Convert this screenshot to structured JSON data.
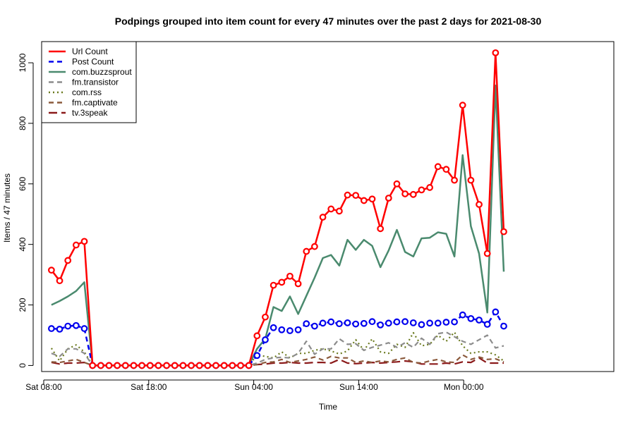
{
  "chart_data": {
    "type": "line",
    "title": "Podpings grouped into item count for every 47 minutes  over the past 2 days for 2021-08-30",
    "xlabel": "Time",
    "ylabel": "Items / 47 minutes",
    "x_tick_labels": [
      "Sat 08:00",
      "Sat 18:00",
      "Sun 04:00",
      "Sun 14:00",
      "Mon 00:00"
    ],
    "x_tick_times": [
      "2021-08-28 08:00",
      "2021-08-28 18:00",
      "2021-08-29 04:00",
      "2021-08-29 14:00",
      "2021-08-30 00:00"
    ],
    "y_ticks": [
      0,
      200,
      400,
      600,
      800,
      1000
    ],
    "ylim": [
      -20,
      1070
    ],
    "xlim": [
      "2021-08-28 07:48",
      "2021-08-30 14:18"
    ],
    "x_start": "2021-08-28 08:44",
    "x_step_minutes": 47,
    "legend_position": "top-left",
    "grid": false,
    "series": [
      {
        "name": "Url Count",
        "color": "#ff0000",
        "style": "solid",
        "markers": true,
        "values": [
          315,
          280,
          347,
          398,
          410,
          0,
          0,
          0,
          0,
          0,
          0,
          0,
          0,
          0,
          0,
          0,
          0,
          0,
          0,
          0,
          0,
          0,
          0,
          0,
          0,
          98,
          160,
          265,
          275,
          295,
          270,
          377,
          393,
          490,
          517,
          510,
          563,
          562,
          545,
          550,
          452,
          553,
          600,
          567,
          565,
          580,
          588,
          657,
          648,
          612,
          860,
          612,
          532,
          370,
          1033,
          442
        ]
      },
      {
        "name": "Post Count",
        "color": "#0000ee",
        "style": "dashed",
        "markers": true,
        "values": [
          122,
          120,
          130,
          132,
          122,
          0,
          0,
          0,
          0,
          0,
          0,
          0,
          0,
          0,
          0,
          0,
          0,
          0,
          0,
          0,
          0,
          0,
          0,
          0,
          0,
          33,
          85,
          125,
          118,
          115,
          118,
          138,
          130,
          140,
          144,
          138,
          141,
          137,
          139,
          145,
          134,
          140,
          144,
          145,
          141,
          135,
          140,
          140,
          143,
          144,
          167,
          155,
          150,
          136,
          177,
          130
        ]
      },
      {
        "name": "com.buzzsprout",
        "color": "#4a8a6e",
        "style": "solid",
        "markers": false,
        "values": [
          200,
          213,
          228,
          246,
          275,
          0,
          0,
          0,
          0,
          0,
          0,
          0,
          0,
          0,
          0,
          0,
          0,
          0,
          0,
          0,
          0,
          0,
          0,
          0,
          0,
          55,
          88,
          193,
          180,
          228,
          170,
          230,
          290,
          355,
          365,
          330,
          415,
          382,
          415,
          395,
          325,
          380,
          448,
          375,
          360,
          420,
          422,
          440,
          435,
          360,
          695,
          460,
          370,
          175,
          925,
          310
        ]
      },
      {
        "name": "fm.transistor",
        "color": "#8c8c8c",
        "style": "dashed",
        "markers": false,
        "values": [
          40,
          30,
          55,
          55,
          40,
          0,
          0,
          0,
          0,
          0,
          0,
          0,
          0,
          0,
          0,
          0,
          0,
          0,
          0,
          0,
          0,
          0,
          0,
          0,
          0,
          8,
          20,
          25,
          27,
          25,
          40,
          80,
          37,
          55,
          55,
          88,
          70,
          72,
          50,
          60,
          67,
          75,
          60,
          75,
          60,
          90,
          70,
          105,
          110,
          95,
          80,
          70,
          85,
          100,
          58,
          65
        ]
      },
      {
        "name": "com.rss",
        "color": "#6b7a1f",
        "style": "dotted",
        "markers": false,
        "values": [
          57,
          15,
          55,
          68,
          45,
          0,
          0,
          0,
          0,
          0,
          0,
          0,
          0,
          0,
          0,
          0,
          0,
          0,
          0,
          0,
          0,
          0,
          0,
          0,
          0,
          35,
          30,
          25,
          45,
          25,
          40,
          40,
          50,
          55,
          48,
          38,
          48,
          85,
          50,
          88,
          45,
          40,
          70,
          60,
          108,
          65,
          70,
          100,
          80,
          110,
          65,
          40,
          45,
          45,
          35,
          15
        ]
      },
      {
        "name": "fm.captivate",
        "color": "#8b5a3c",
        "style": "dashed",
        "markers": false,
        "values": [
          12,
          10,
          15,
          20,
          10,
          0,
          0,
          0,
          0,
          0,
          0,
          0,
          0,
          0,
          0,
          0,
          0,
          0,
          0,
          0,
          0,
          0,
          0,
          0,
          0,
          3,
          10,
          12,
          20,
          10,
          15,
          20,
          28,
          18,
          30,
          25,
          25,
          10,
          15,
          10,
          15,
          12,
          20,
          25,
          10,
          8,
          15,
          20,
          12,
          10,
          35,
          20,
          28,
          20,
          22,
          12
        ]
      },
      {
        "name": "tv.3speak",
        "color": "#8b1a1a",
        "style": "longdash",
        "markers": false,
        "values": [
          10,
          5,
          8,
          8,
          10,
          0,
          0,
          0,
          0,
          0,
          0,
          0,
          0,
          0,
          0,
          0,
          0,
          0,
          0,
          0,
          0,
          0,
          0,
          0,
          0,
          3,
          5,
          8,
          8,
          10,
          8,
          8,
          10,
          10,
          8,
          20,
          8,
          6,
          8,
          10,
          8,
          10,
          12,
          15,
          12,
          5,
          5,
          5,
          8,
          5,
          12,
          10,
          25,
          8,
          8,
          8
        ]
      }
    ]
  }
}
